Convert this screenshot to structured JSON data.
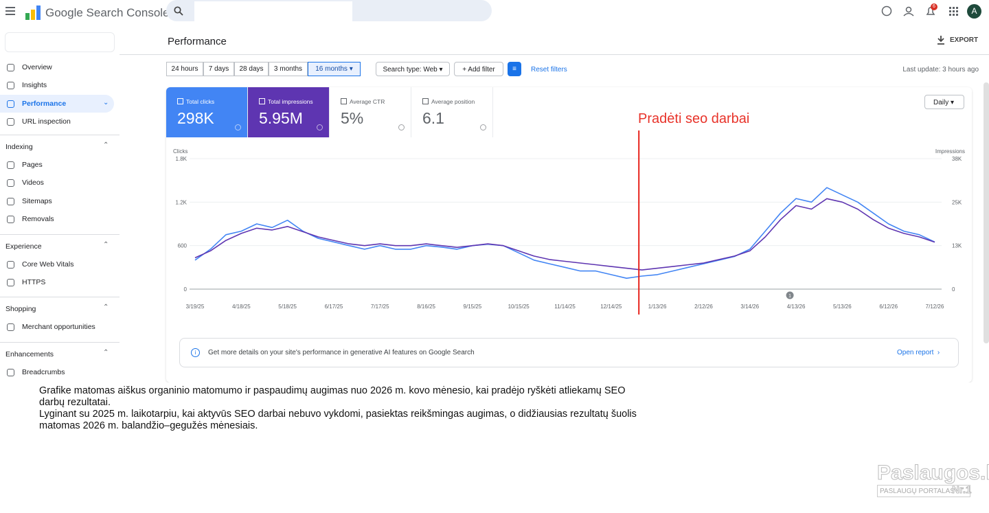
{
  "header": {
    "product": "Google Search Console",
    "badge": "6",
    "avatar": "A"
  },
  "sidebar": {
    "top": [
      "Overview",
      "Insights",
      "Performance",
      "URL inspection"
    ],
    "sections": [
      {
        "title": "Indexing",
        "items": [
          "Pages",
          "Videos",
          "Sitemaps",
          "Removals"
        ]
      },
      {
        "title": "Experience",
        "items": [
          "Core Web Vitals",
          "HTTPS"
        ]
      },
      {
        "title": "Shopping",
        "items": [
          "Merchant opportunities"
        ]
      },
      {
        "title": "Enhancements",
        "items": [
          "Breadcrumbs"
        ]
      }
    ]
  },
  "page": {
    "title": "Performance",
    "export": "EXPORT",
    "ranges": [
      "24 hours",
      "7 days",
      "28 days",
      "3 months",
      "16 months"
    ],
    "search_type": "Search type: Web",
    "add_filter": "Add filter",
    "reset": "Reset filters",
    "last_update": "Last update: 3 hours ago",
    "granularity": "Daily"
  },
  "metrics": [
    {
      "label": "Total clicks",
      "value": "298K"
    },
    {
      "label": "Total impressions",
      "value": "5.95M"
    },
    {
      "label": "Average CTR",
      "value": "5%"
    },
    {
      "label": "Average position",
      "value": "6.1"
    }
  ],
  "chart_data": {
    "type": "line",
    "annotation": "Pradėti seo darbai",
    "marker": "1",
    "x": [
      "3/19/25",
      null,
      null,
      "4/18/25",
      null,
      null,
      "5/18/25",
      null,
      null,
      "6/17/25",
      null,
      null,
      "7/17/25",
      null,
      null,
      "8/16/25",
      null,
      null,
      "9/15/25",
      null,
      null,
      "10/15/25",
      null,
      null,
      "11/14/25",
      null,
      null,
      "12/14/25",
      null,
      null,
      "1/13/26",
      null,
      null,
      "2/12/26",
      null,
      null,
      "3/14/26",
      null,
      null,
      "4/13/26",
      null,
      null,
      "5/13/26",
      null,
      null,
      "6/12/26",
      null,
      null,
      "7/12/26"
    ],
    "series": [
      {
        "name": "Clicks",
        "color": "#4285f4",
        "values": [
          400,
          550,
          750,
          800,
          900,
          850,
          950,
          800,
          700,
          650,
          600,
          550,
          600,
          550,
          550,
          600,
          580,
          550,
          600,
          620,
          600,
          500,
          400,
          350,
          300,
          250,
          250,
          200,
          150,
          180,
          200,
          250,
          300,
          350,
          400,
          450,
          550,
          800,
          1050,
          1250,
          1200,
          1400,
          1300,
          1200,
          1050,
          900,
          800,
          750,
          650
        ]
      },
      {
        "name": "Impressions",
        "color": "#5e35b1",
        "axis": "y2",
        "values": [
          9000,
          11000,
          14000,
          16000,
          17500,
          17000,
          18000,
          16500,
          15000,
          14000,
          13000,
          12500,
          13000,
          12500,
          12500,
          13000,
          12500,
          12000,
          12500,
          13000,
          12500,
          11000,
          9500,
          8500,
          8000,
          7500,
          7000,
          6500,
          6000,
          5500,
          6000,
          6500,
          7000,
          7500,
          8500,
          9500,
          11000,
          15000,
          20000,
          24000,
          23000,
          26000,
          25000,
          23000,
          20000,
          17500,
          16000,
          15000,
          13500
        ]
      }
    ],
    "ylim": [
      0,
      1800
    ],
    "yticks": [
      0,
      600,
      {
        "value": 1200,
        "label": "1.2K"
      },
      {
        "value": 1800,
        "label": "1.8K"
      }
    ],
    "y2lim": [
      0,
      37500
    ],
    "y2ticks": [
      0,
      {
        "value": 12500,
        "label": "13K"
      },
      {
        "value": 25000,
        "label": "25K"
      },
      {
        "value": 37500,
        "label": "38K"
      }
    ],
    "grid": true
  },
  "info": {
    "text": "Get more details on your site's performance in generative AI features on Google Search",
    "link": "Open report"
  },
  "caption": [
    "Grafike matomas aiškus organinio matomumo ir paspaudimų augimas nuo 2026 m. kovo mėnesio, kai pradėjo ryškėti atliekamų SEO darbų rezultatai.",
    "Lyginant su 2025 m. laikotarpiu, kai aktyvūs SEO darbai nebuvo vykdomi, pasiektas reikšmingas augimas, o didžiausias rezultatų šuolis matomas 2026 m. balandžio–gegužės mėnesiais."
  ],
  "watermark": {
    "brand": "Paslaugos.lt",
    "tagline": "PASLAUGŲ PORTALAS",
    "rank": "Nr.1"
  }
}
